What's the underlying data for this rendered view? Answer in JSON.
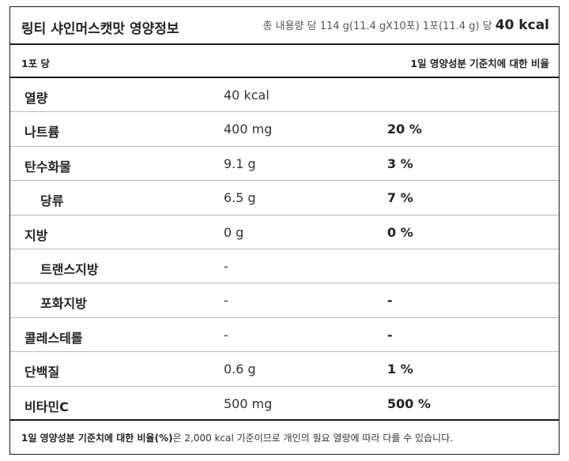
{
  "header": {
    "title": "링티 샤인머스캣맛 영양정보",
    "serving_info": "총 내용량 당 114 g(11.4 gX10포) 1포(11.4 g) 당",
    "kcal": "40 kcal"
  },
  "subheader": {
    "per": "1포 당",
    "daily_value": "1일 영양성분 기준치에 대한 비율"
  },
  "rows": [
    {
      "name": "열량",
      "amount": "40 kcal",
      "percent": ""
    },
    {
      "name": "나트륨",
      "amount": "400 mg",
      "percent": "20 %"
    },
    {
      "name": "탄수화물",
      "amount": "9.1 g",
      "percent": "3 %"
    },
    {
      "name": "당류",
      "amount": "6.5 g",
      "percent": "7 %"
    },
    {
      "name": "지방",
      "amount": "0 g",
      "percent": "0 %"
    },
    {
      "name": "트랜스지방",
      "amount": "-",
      "percent": ""
    },
    {
      "name": "포화지방",
      "amount": "-",
      "percent": "-"
    },
    {
      "name": "콜레스테롤",
      "amount": "-",
      "percent": "-"
    },
    {
      "name": "단백질",
      "amount": "0.6 g",
      "percent": "1 %"
    },
    {
      "name": "비타민C",
      "amount": "500 mg",
      "percent": "500 %"
    }
  ],
  "footnote": {
    "bold": "1일 영양성분 기준치에 대한 비율(%)",
    "text": "은 2,000 kcal 기준이므로 개인의 필요 열량에 따라 다를 수 있습니다."
  }
}
